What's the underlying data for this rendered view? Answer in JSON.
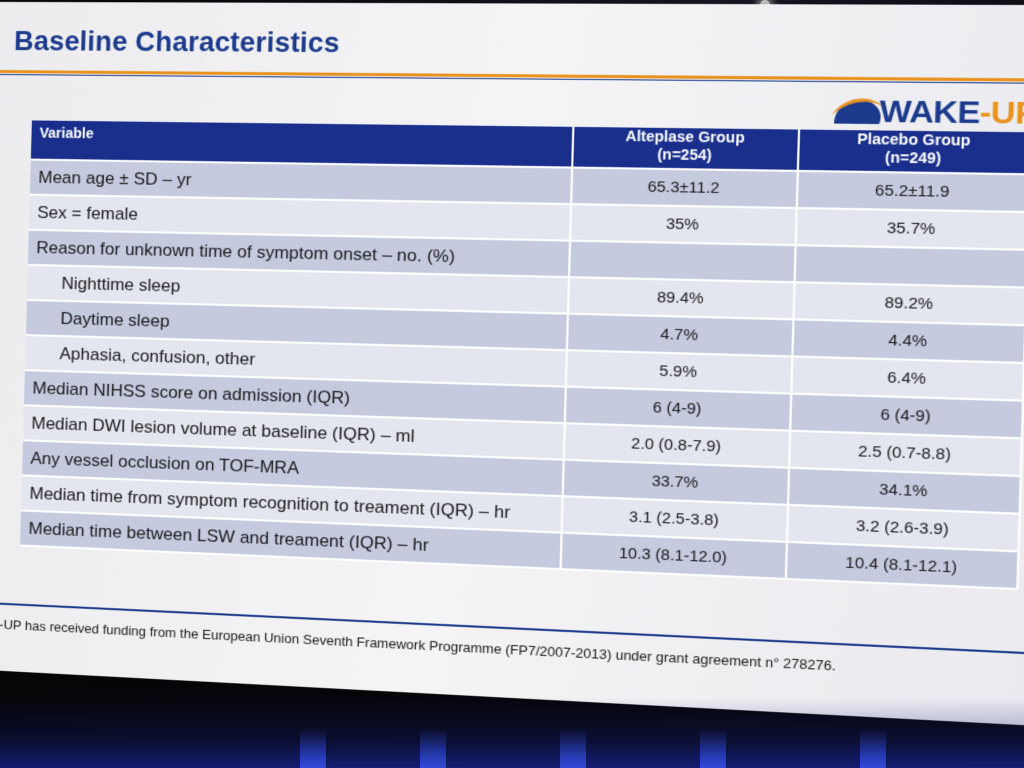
{
  "slide": {
    "title": "Baseline Characteristics",
    "logo": {
      "text_main": "WAKE",
      "text_accent": "-UP"
    },
    "footer": "KE-UP has received funding from the European Union Seventh Framework Programme (FP7/2007-2013) under grant agreement n° 278276."
  },
  "table": {
    "columns": {
      "variable": "Variable",
      "alteplase": {
        "label": "Alteplase Group",
        "n": "(n=254)"
      },
      "placebo": {
        "label": "Placebo Group",
        "n": "(n=249)"
      }
    },
    "rows": [
      {
        "variable": "Mean age ± SD – yr",
        "alteplase": "65.3±11.2",
        "placebo": "65.2±11.9"
      },
      {
        "variable": "Sex = female",
        "alteplase": "35%",
        "placebo": "35.7%"
      },
      {
        "variable": "Reason for unknown time of symptom onset – no. (%)",
        "alteplase": "",
        "placebo": ""
      },
      {
        "variable": "Nighttime sleep",
        "alteplase": "89.4%",
        "placebo": "89.2%"
      },
      {
        "variable": "Daytime sleep",
        "alteplase": "4.7%",
        "placebo": "4.4%"
      },
      {
        "variable": "Aphasia, confusion, other",
        "alteplase": "5.9%",
        "placebo": "6.4%"
      },
      {
        "variable": "Median NIHSS score on admission (IQR)",
        "alteplase": "6 (4-9)",
        "placebo": "6 (4-9)"
      },
      {
        "variable": "Median DWI lesion volume at baseline (IQR) – ml",
        "alteplase": "2.0 (0.8-7.9)",
        "placebo": "2.5 (0.7-8.8)"
      },
      {
        "variable": "Any vessel occlusion on TOF-MRA",
        "alteplase": "33.7%",
        "placebo": "34.1%"
      },
      {
        "variable": "Median time from symptom recognition to treament (IQR) – hr",
        "alteplase": "3.1 (2.5-3.8)",
        "placebo": "3.2 (2.6-3.9)"
      },
      {
        "variable": "Median time between LSW and treament (IQR) – hr",
        "alteplase": "10.3 (8.1-12.0)",
        "placebo": "10.4 (8.1-12.1)"
      }
    ]
  },
  "colors": {
    "title": "#1c3a8c",
    "header": "#1a2f8c",
    "accent": "#e8931f",
    "band_dark": "#c6cadf",
    "band_light": "#e4e6ef"
  }
}
